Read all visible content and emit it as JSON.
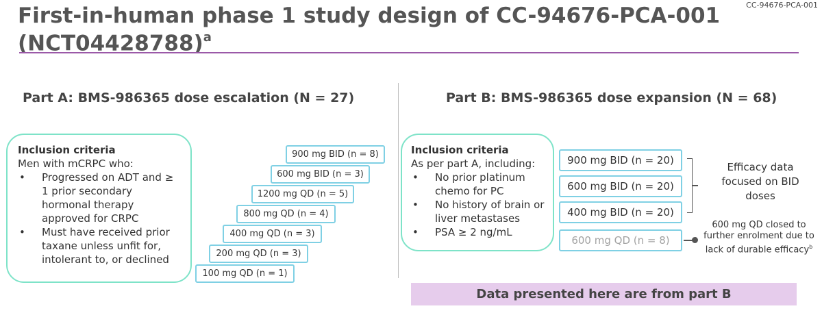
{
  "header": {
    "title": "First-in-human phase 1 study design of CC-94676-PCA-001 (NCT04428788)",
    "title_superscript": "a",
    "reference_code": "CC-94676-PCA-001"
  },
  "part_a": {
    "heading": "Part A: BMS-986365 dose escalation (N = 27)",
    "criteria": {
      "heading": "Inclusion criteria",
      "intro": "Men with mCRPC who:",
      "items": [
        "Progressed on ADT and ≥ 1 prior secondary hormonal therapy approved for CRPC",
        "Must have received prior taxane unless unfit for, intolerant to, or declined"
      ]
    },
    "doses": [
      "900 mg BID (n = 8)",
      "600 mg BID (n = 3)",
      "1200 mg QD (n = 5)",
      "800 mg QD (n = 4)",
      "400 mg QD (n = 3)",
      "200 mg QD (n = 3)",
      "100 mg QD (n = 1)"
    ]
  },
  "part_b": {
    "heading": "Part B: BMS-986365 dose expansion (N = 68)",
    "criteria": {
      "heading": "Inclusion criteria",
      "intro": "As per part A, including:",
      "items": [
        "No prior platinum chemo for PC",
        "No history of brain or liver metastases",
        "PSA ≥ 2 ng/mL"
      ]
    },
    "doses": [
      "900 mg BID (n = 20)",
      "600 mg BID (n = 20)",
      "400 mg BID (n = 20)",
      "600 mg QD (n = 8)"
    ],
    "efficacy_note": "Efficacy data focused on BID doses",
    "closure_note": "600 mg QD closed to further enrolment due to lack of durable efficacy",
    "closure_superscript": "b"
  },
  "banner": "Data presented here are from part B",
  "colors": {
    "title_rule": "#9b59a8",
    "criteria_border": "#7ee3c8",
    "dose_border": "#7fd0e4",
    "banner_bg": "#e6ccec",
    "muted_text": "#a3a3a3"
  }
}
